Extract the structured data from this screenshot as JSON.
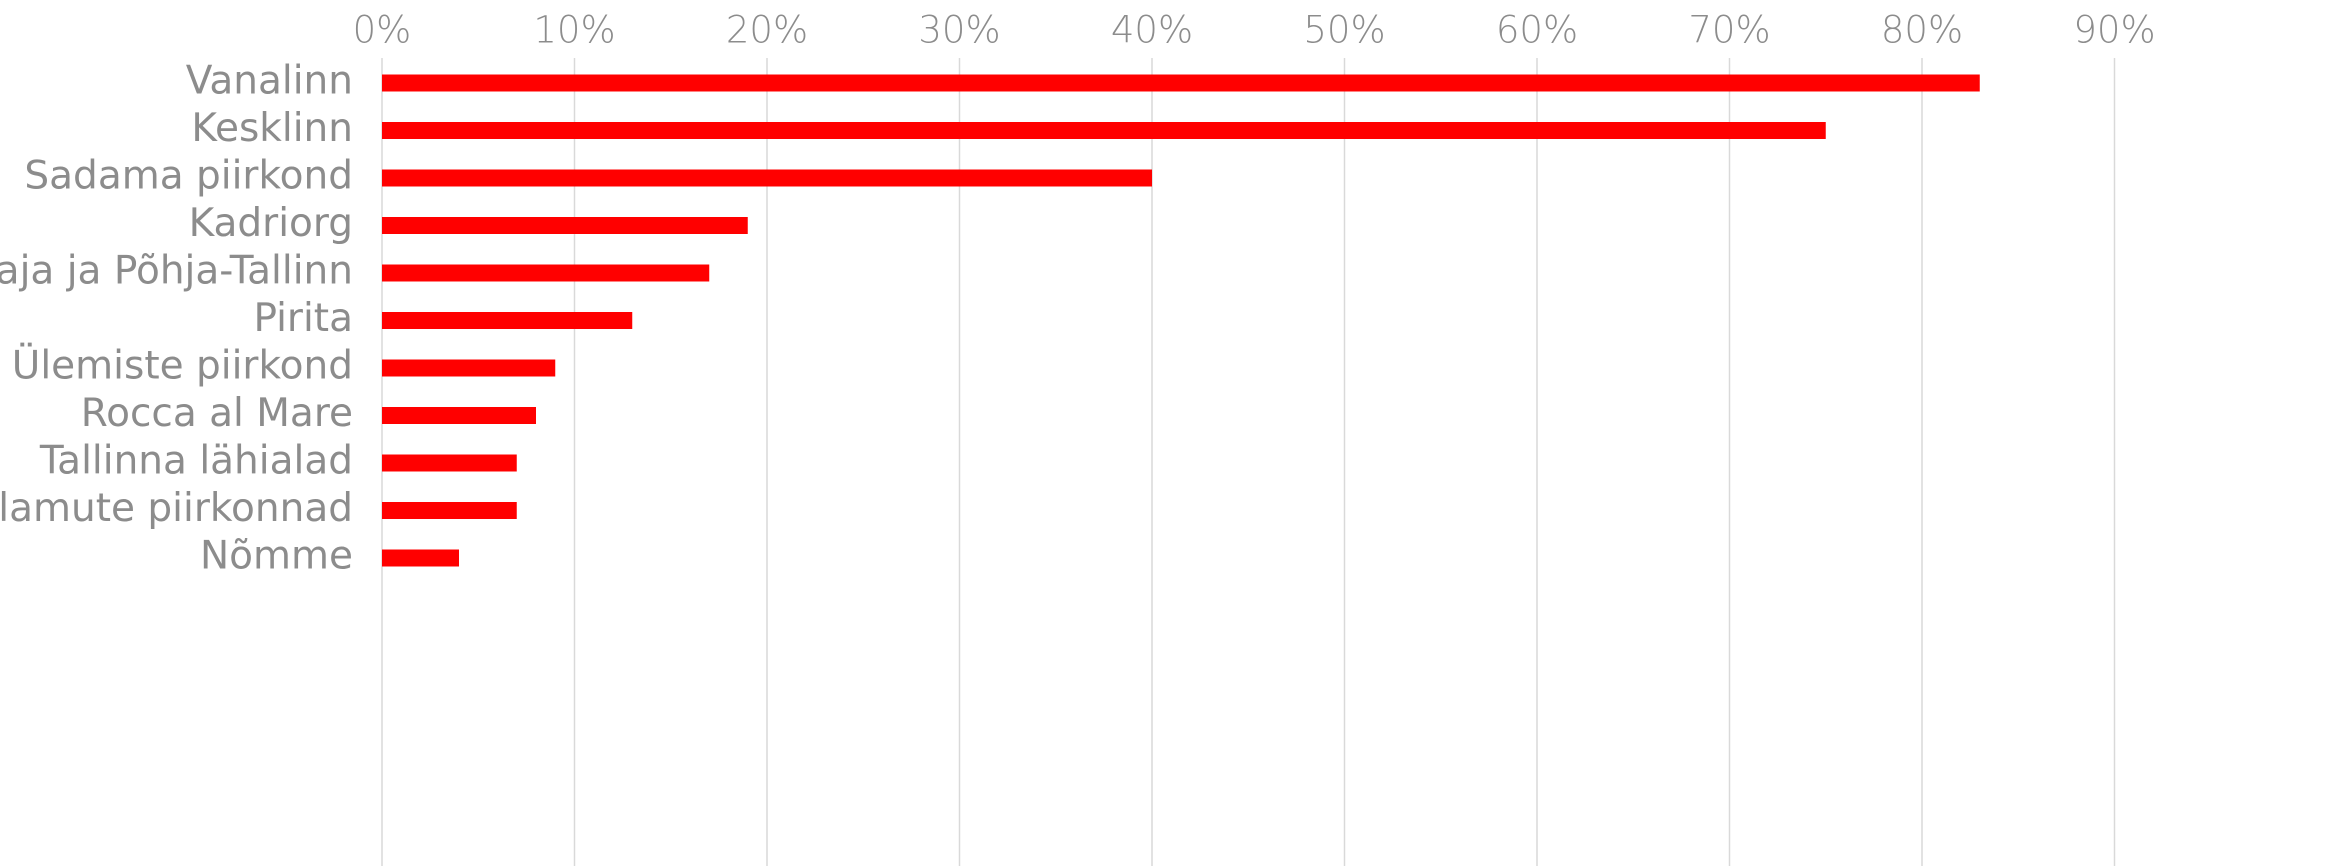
{
  "chart_data": {
    "type": "bar",
    "orientation": "horizontal",
    "title": "",
    "xlabel": "",
    "ylabel": "",
    "xlim": [
      0,
      90
    ],
    "x_tick_values": [
      0,
      10,
      20,
      30,
      40,
      50,
      60,
      70,
      80,
      90
    ],
    "x_tick_labels": [
      "0%",
      "10%",
      "20%",
      "30%",
      "40%",
      "50%",
      "60%",
      "70%",
      "80%",
      "90%"
    ],
    "x_axis_position": "top",
    "grid": "vertical",
    "legend": "none",
    "categories": [
      "Vanalinn",
      "Kesklinn",
      "Sadama piirkond",
      "Kadriorg",
      "Kalamaja ja Põhja-Tallinn",
      "Pirita",
      "Ülemiste piirkond",
      "Rocca al Mare",
      "Tallinna lähialad",
      "Korterelamute piirkonnad",
      "Nõmme"
    ],
    "values": [
      83,
      75,
      40,
      19,
      17,
      13,
      9,
      8,
      7,
      7,
      4
    ],
    "unit": "%",
    "colors": {
      "bar": "#ff0000",
      "grid": "#d9d9d9",
      "text": "#8c8c8c"
    }
  }
}
